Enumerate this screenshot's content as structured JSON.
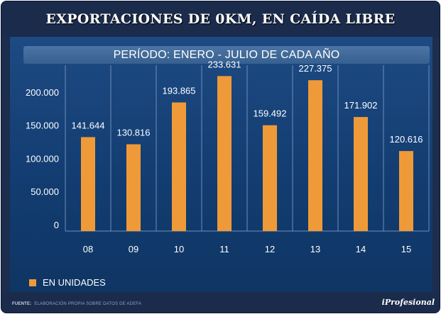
{
  "title": "EXPORTACIONES DE 0KM, EN CAÍDA LIBRE",
  "subtitle": "PERÍODO: ENERO - JULIO DE CADA AÑO",
  "legend_label": "EN UNIDADES",
  "source_label": "FUENTE:",
  "source_text": "ELABORACIÓN PROPIA SOBRE DATOS DE ADEFA",
  "brand": "iProfesional",
  "colors": {
    "bar": "#ef9a38",
    "background": "#1c2d4d",
    "panel": "#163f74"
  },
  "chart_data": {
    "type": "bar",
    "title": "EXPORTACIONES DE 0KM, EN CAÍDA LIBRE",
    "subtitle": "PERÍODO: ENERO - JULIO DE CADA AÑO",
    "categories": [
      "08",
      "09",
      "10",
      "11",
      "12",
      "13",
      "14",
      "15"
    ],
    "values": [
      141644,
      130816,
      193865,
      233631,
      159492,
      227375,
      171902,
      120616
    ],
    "value_labels": [
      "141.644",
      "130.816",
      "193.865",
      "233.631",
      "159.492",
      "227.375",
      "171.902",
      "120.616"
    ],
    "y_ticks": [
      0,
      50000,
      100000,
      150000,
      200000
    ],
    "y_tick_labels": [
      "0",
      "50.000",
      "100.000",
      "150.000",
      "200.000"
    ],
    "ylim": [
      0,
      250000
    ],
    "xlabel": "",
    "ylabel": "",
    "legend": [
      "EN UNIDADES"
    ],
    "legend_position": "bottom-left",
    "grid": "vertical"
  }
}
